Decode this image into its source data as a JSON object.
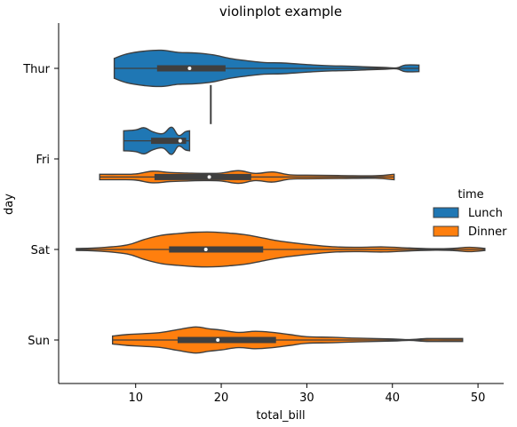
{
  "chart_data": {
    "type": "violin",
    "title": "violinplot example",
    "xlabel": "total_bill",
    "ylabel": "day",
    "xlim": [
      1,
      53
    ],
    "xticks": [
      10,
      20,
      30,
      40,
      50
    ],
    "categories": [
      "Thur",
      "Fri",
      "Sat",
      "Sun"
    ],
    "orientation": "horizontal",
    "legend": {
      "title": "time",
      "entries": [
        {
          "label": "Lunch",
          "color": "#1f77b4"
        },
        {
          "label": "Dinner",
          "color": "#ff7f0e"
        }
      ],
      "placement": "right"
    },
    "series": [
      {
        "day": "Thur",
        "time": "Lunch",
        "color": "#1f77b4",
        "offset": 0,
        "min": 7.5,
        "q1": 12.5,
        "median": 16.3,
        "q3": 20.5,
        "max": 43.1,
        "density": [
          [
            7.5,
            0.55
          ],
          [
            9,
            0.8
          ],
          [
            11,
            0.95
          ],
          [
            13,
            1.0
          ],
          [
            15,
            0.88
          ],
          [
            17,
            0.85
          ],
          [
            19,
            0.75
          ],
          [
            21,
            0.55
          ],
          [
            23,
            0.42
          ],
          [
            25,
            0.32
          ],
          [
            27,
            0.3
          ],
          [
            29,
            0.24
          ],
          [
            31,
            0.18
          ],
          [
            33,
            0.14
          ],
          [
            35,
            0.12
          ],
          [
            37,
            0.08
          ],
          [
            39,
            0.05
          ],
          [
            40.5,
            0.03
          ],
          [
            41.5,
            0.18
          ],
          [
            43.1,
            0.18
          ]
        ]
      },
      {
        "day": "Thur",
        "time": "Dinner",
        "color": "#ff7f0e",
        "offset": 0.4,
        "min": 18.78,
        "q1": 18.78,
        "median": 18.78,
        "q3": 18.78,
        "max": 18.78,
        "single_value": true
      },
      {
        "day": "Fri",
        "time": "Lunch",
        "color": "#1f77b4",
        "offset": -0.2,
        "min": 8.6,
        "q1": 11.8,
        "median": 15.2,
        "q3": 15.9,
        "max": 16.3,
        "density": [
          [
            8.6,
            0.55
          ],
          [
            10,
            0.6
          ],
          [
            11,
            0.72
          ],
          [
            12,
            0.5
          ],
          [
            13.2,
            0.4
          ],
          [
            14.2,
            0.75
          ],
          [
            15,
            0.3
          ],
          [
            15.8,
            0.5
          ],
          [
            16.3,
            0.55
          ]
        ]
      },
      {
        "day": "Fri",
        "time": "Dinner",
        "color": "#ff7f0e",
        "offset": 0.2,
        "min": 5.8,
        "q1": 12.2,
        "median": 18.6,
        "q3": 23.5,
        "max": 40.2,
        "density": [
          [
            5.8,
            0.15
          ],
          [
            8,
            0.15
          ],
          [
            10,
            0.17
          ],
          [
            12,
            0.32
          ],
          [
            14,
            0.25
          ],
          [
            16,
            0.22
          ],
          [
            18,
            0.2
          ],
          [
            20,
            0.22
          ],
          [
            22,
            0.35
          ],
          [
            24,
            0.2
          ],
          [
            26,
            0.28
          ],
          [
            28,
            0.12
          ],
          [
            30,
            0.1
          ],
          [
            34,
            0.08
          ],
          [
            38,
            0.07
          ],
          [
            40.2,
            0.15
          ]
        ]
      },
      {
        "day": "Sat",
        "time": "Dinner",
        "color": "#ff7f0e",
        "offset": 0,
        "min": 3.07,
        "q1": 13.9,
        "median": 18.2,
        "q3": 24.9,
        "max": 50.8,
        "density": [
          [
            3.07,
            0.05
          ],
          [
            6,
            0.1
          ],
          [
            9,
            0.25
          ],
          [
            11,
            0.55
          ],
          [
            13,
            0.78
          ],
          [
            15,
            0.88
          ],
          [
            17,
            0.95
          ],
          [
            19,
            0.96
          ],
          [
            21,
            0.9
          ],
          [
            23,
            0.8
          ],
          [
            25,
            0.62
          ],
          [
            27,
            0.45
          ],
          [
            30,
            0.28
          ],
          [
            33,
            0.15
          ],
          [
            36,
            0.12
          ],
          [
            39,
            0.14
          ],
          [
            42,
            0.08
          ],
          [
            45,
            0.04
          ],
          [
            47,
            0.06
          ],
          [
            49,
            0.12
          ],
          [
            50.8,
            0.06
          ]
        ]
      },
      {
        "day": "Sun",
        "time": "Dinner",
        "color": "#ff7f0e",
        "offset": 0,
        "min": 7.3,
        "q1": 14.9,
        "median": 19.6,
        "q3": 26.4,
        "max": 48.2,
        "density": [
          [
            7.3,
            0.22
          ],
          [
            9,
            0.3
          ],
          [
            11,
            0.35
          ],
          [
            13,
            0.42
          ],
          [
            15,
            0.58
          ],
          [
            17,
            0.72
          ],
          [
            18.5,
            0.62
          ],
          [
            20,
            0.55
          ],
          [
            22,
            0.42
          ],
          [
            24,
            0.48
          ],
          [
            26,
            0.42
          ],
          [
            28,
            0.3
          ],
          [
            30,
            0.18
          ],
          [
            33,
            0.15
          ],
          [
            36,
            0.1
          ],
          [
            40,
            0.06
          ],
          [
            42,
            0.02
          ],
          [
            44,
            0.08
          ],
          [
            46,
            0.08
          ],
          [
            48.2,
            0.08
          ]
        ]
      }
    ]
  }
}
